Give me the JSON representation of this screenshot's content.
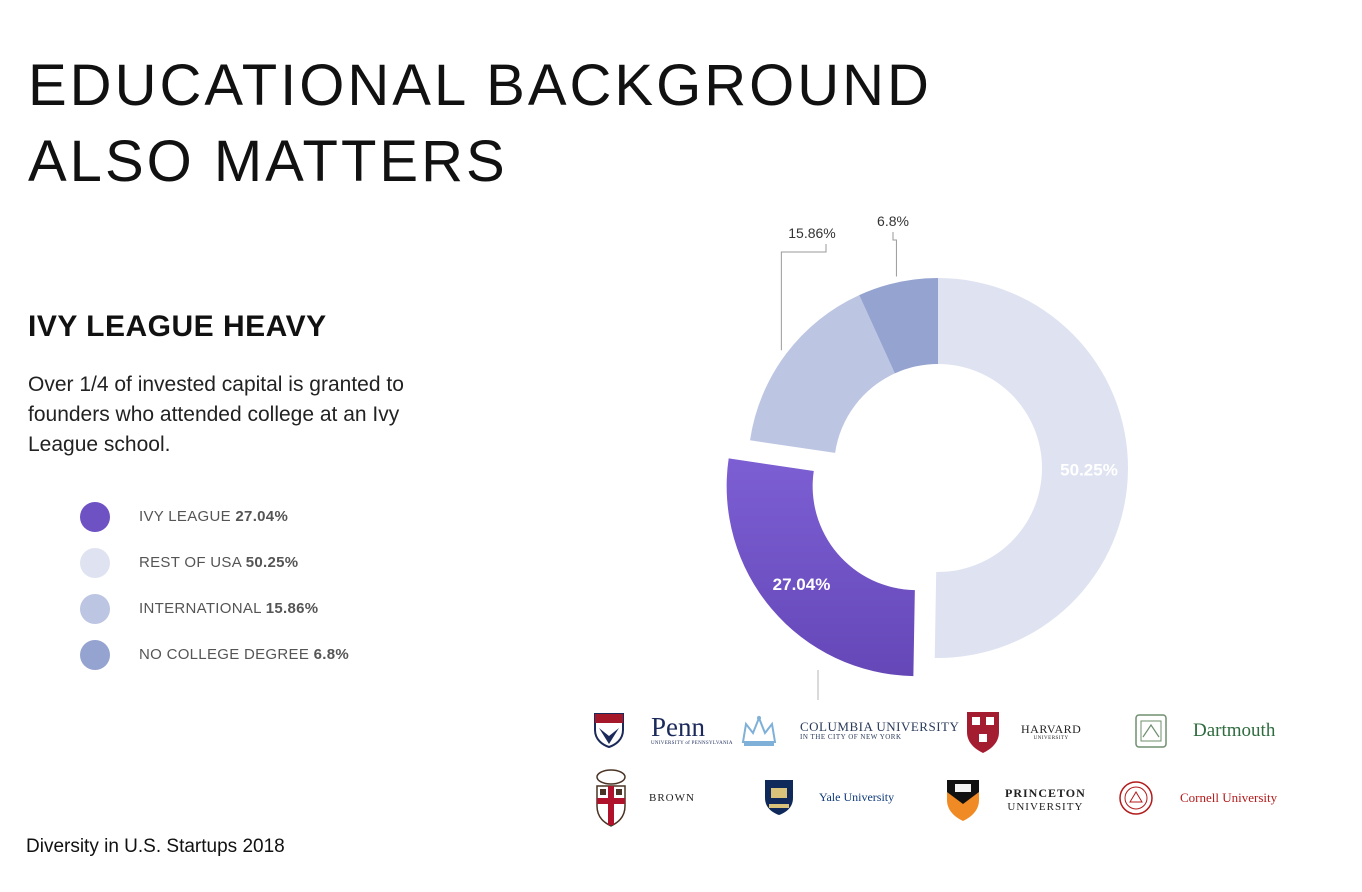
{
  "title_lines": [
    "EDUCATIONAL BACKGROUND",
    "ALSO MATTERS"
  ],
  "subhead": "IVY LEAGUE HEAVY",
  "description": "Over 1/4 of invested capital is granted to founders who attended college at an Ivy League school.",
  "legend": [
    {
      "label": "IVY LEAGUE",
      "value": "27.04%",
      "color": "#6e52c4"
    },
    {
      "label": "REST OF USA",
      "value": "50.25%",
      "color": "#dfe3f1"
    },
    {
      "label": "INTERNATIONAL",
      "value": "15.86%",
      "color": "#bcc5e2"
    },
    {
      "label": "NO COLLEGE DEGREE",
      "value": "6.8%",
      "color": "#95a3d0"
    }
  ],
  "footer": "Diversity in U.S. Startups 2018",
  "chart_data": {
    "type": "pie",
    "donut": true,
    "slices": [
      {
        "name": "Rest of USA",
        "value": 50.25,
        "label": "50.25%",
        "color": "#dfe3f1"
      },
      {
        "name": "Ivy League",
        "value": 27.04,
        "label": "27.04%",
        "color": "#6e52c4"
      },
      {
        "name": "International",
        "value": 15.86,
        "label": "15.86%",
        "color": "#bcc5e2"
      },
      {
        "name": "No College Degree",
        "value": 6.8,
        "label": "6.8%",
        "color": "#95a3d0"
      }
    ]
  },
  "logos": {
    "penn": {
      "name": "Penn",
      "sub": "UNIVERSITY of PENNSYLVANIA"
    },
    "columbia": {
      "name": "COLUMBIA UNIVERSITY",
      "sub": "IN THE CITY OF NEW YORK"
    },
    "harvard": {
      "name": "HARVARD",
      "sub": "UNIVERSITY"
    },
    "dartmouth": {
      "name": "Dartmouth"
    },
    "brown": {
      "name": "BROWN"
    },
    "yale": {
      "name": "Yale University"
    },
    "princeton": {
      "name": "PRINCETON",
      "sub": "UNIVERSITY"
    },
    "cornell": {
      "name": "Cornell University"
    }
  }
}
